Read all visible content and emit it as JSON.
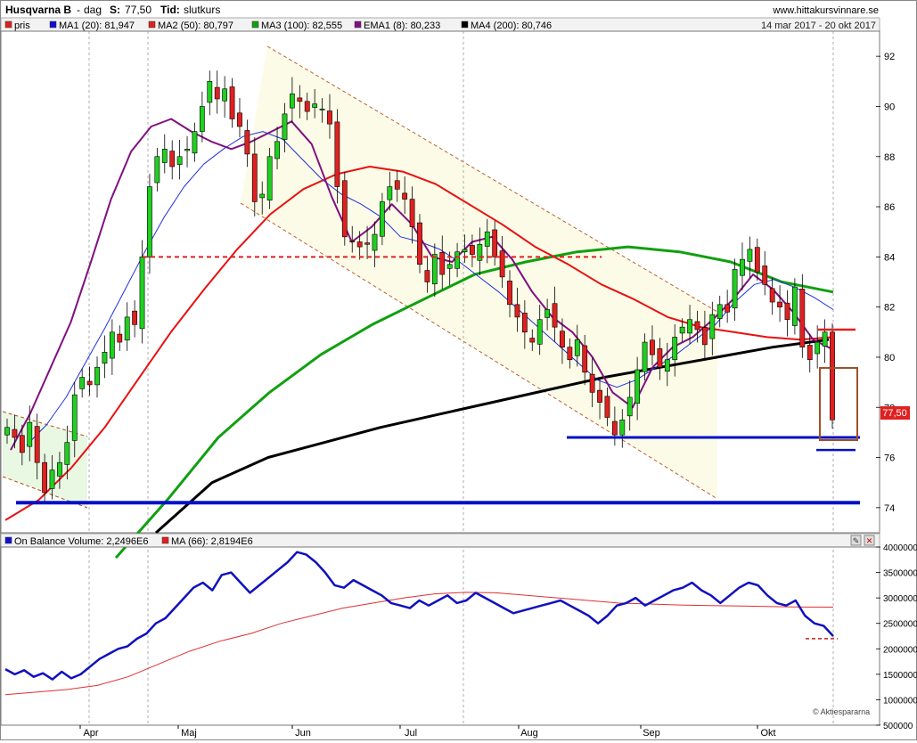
{
  "header": {
    "stock": "Husqvarna B",
    "sep": "-",
    "period": "dag",
    "close_label": "S:",
    "close_value": "77,50",
    "time_label": "Tid:",
    "time_value": "slutkurs",
    "site": "www.hittakursvinnare.se",
    "range": "14 mar 2017 - 20 okt 2017"
  },
  "legend": [
    {
      "label": "pris",
      "color": "#e02020"
    },
    {
      "label": "MA1 (20): 81,947",
      "color": "#1010d0"
    },
    {
      "label": "MA2 (50): 80,797",
      "color": "#e02020"
    },
    {
      "label": "MA3 (100): 82,555",
      "color": "#10a010"
    },
    {
      "label": "EMA1 (8): 80,233",
      "color": "#801080"
    },
    {
      "label": "MA4 (200): 80,746",
      "color": "#000000"
    }
  ],
  "price_tag": "77,50",
  "obv_legend": [
    {
      "label": "On Balance Volume: 2,2496E6",
      "color": "#1010d0"
    },
    {
      "label": "MA (66): 2,8194E6",
      "color": "#e02020"
    }
  ],
  "watermark": "© Aktiespararna",
  "colors": {
    "up": "#20d020",
    "down": "#e02020",
    "ma20": "#2030e0",
    "ma50": "#e81010",
    "ma100": "#10a010",
    "ema8": "#801080",
    "ma200": "#000000",
    "obv": "#1010c0",
    "support": "#0010c8"
  },
  "chart_data": [
    {
      "type": "candlestick",
      "x_months": [
        "Apr",
        "Maj",
        "Jun",
        "Jul",
        "Aug",
        "Sep",
        "Okt"
      ],
      "y_ticks": [
        74,
        76,
        78,
        80,
        82,
        84,
        86,
        88,
        90,
        92
      ],
      "ylim": [
        73,
        93
      ],
      "grid": false,
      "close_series": [
        77.2,
        76.8,
        76.2,
        77.4,
        75.8,
        74.6,
        75.5,
        75.8,
        76.6,
        78.5,
        79.2,
        78.9,
        79.6,
        80.2,
        81.0,
        80.6,
        81.6,
        81.3,
        84.0,
        86.8,
        88.0,
        88.3,
        87.6,
        88.0,
        88.3,
        89.0,
        90.0,
        91.0,
        90.3,
        90.7,
        89.5,
        89.2,
        88.1,
        86.2,
        86.5,
        88.0,
        88.6,
        89.7,
        90.5,
        90.2,
        89.8,
        90.1,
        89.9,
        89.3,
        86.8,
        84.8,
        84.6,
        84.4,
        84.5,
        84.9,
        86.2,
        86.8,
        86.7,
        86.3,
        85.2,
        83.7,
        83.0,
        84.1,
        83.3,
        83.7,
        84.2,
        84.3,
        84.1,
        84.5,
        85.0,
        84.0,
        83.2,
        82.1,
        81.6,
        81.0,
        80.6,
        81.5,
        81.9,
        81.2,
        80.4,
        79.9,
        80.7,
        79.4,
        78.6,
        78.2,
        77.6,
        76.9,
        77.5,
        78.4,
        79.5,
        80.6,
        80.1,
        79.6,
        79.9,
        80.8,
        81.2,
        81.5,
        81.1,
        80.5,
        81.7,
        82.1,
        81.8,
        83.5,
        83.9,
        84.3,
        83.4,
        82.9,
        82.2,
        82.0,
        81.5,
        82.8,
        80.4,
        79.9,
        80.6,
        81.0,
        77.5
      ],
      "ma20": [
        76.5,
        77.3,
        78.4,
        79.8,
        81.2,
        82.7,
        84.2,
        85.6,
        86.8,
        87.7,
        88.3,
        88.8,
        89.0,
        88.7,
        87.9,
        87.1,
        86.5,
        86.1,
        85.6,
        84.8,
        84.6,
        84.3,
        83.8,
        83.2,
        82.6,
        81.9,
        81.2,
        80.5,
        79.8,
        79.1,
        78.8,
        79.1,
        79.6,
        80.1,
        80.7,
        81.3,
        82.2,
        82.9,
        83.1,
        82.8,
        82.4,
        81.9
      ],
      "ma50": [
        73.5,
        74.3,
        75.6,
        77.2,
        79.1,
        81.0,
        82.7,
        84.3,
        85.7,
        86.7,
        87.3,
        87.6,
        87.4,
        86.9,
        86.1,
        85.3,
        84.4,
        83.7,
        82.9,
        82.3,
        81.6,
        81.2,
        81.0,
        80.8,
        80.7,
        80.8
      ],
      "ma100": [
        72.0,
        74.3,
        76.8,
        78.6,
        80.1,
        81.3,
        82.3,
        83.3,
        83.8,
        84.2,
        84.4,
        84.2,
        83.8,
        83.0,
        82.6
      ],
      "ema8": [
        76.3,
        77.8,
        79.6,
        81.4,
        83.8,
        86.3,
        88.2,
        89.2,
        89.5,
        89.0,
        88.6,
        88.3,
        88.6,
        89.0,
        89.4,
        88.5,
        86.4,
        84.6,
        85.2,
        86.1,
        85.3,
        84.0,
        83.8,
        84.6,
        84.8,
        83.9,
        82.6,
        81.6,
        81.0,
        80.0,
        78.6,
        78.0,
        79.6,
        80.4,
        80.8,
        81.5,
        82.3,
        83.3,
        82.7,
        81.8,
        80.7,
        80.3
      ],
      "ma200": [
        73.0,
        75.0,
        76.0,
        76.6,
        77.2,
        77.7,
        78.2,
        78.7,
        79.2,
        79.6,
        80.0,
        80.4,
        80.7
      ],
      "annotations": [
        {
          "type": "hline",
          "label": "resistance",
          "y": 84.0
        },
        {
          "type": "hline",
          "label": "support",
          "y": 76.8
        },
        {
          "type": "hline",
          "label": "support",
          "y": 74.2
        },
        {
          "type": "hline",
          "label": "upper",
          "y": 81.1
        },
        {
          "type": "hline",
          "label": "lower",
          "y": 76.3
        }
      ]
    },
    {
      "type": "line",
      "y_ticks": [
        "4000000",
        "3500000",
        "3000000",
        "2500000",
        "2000000",
        "1500000",
        "1000000",
        "500000"
      ],
      "ylim": [
        500000,
        4000000
      ],
      "series": [
        {
          "name": "On Balance Volume",
          "values": [
            1600000,
            1500000,
            1580000,
            1450000,
            1520000,
            1400000,
            1550000,
            1420000,
            1500000,
            1650000,
            1800000,
            1900000,
            2000000,
            2050000,
            2200000,
            2300000,
            2500000,
            2600000,
            2800000,
            3000000,
            3200000,
            3300000,
            3150000,
            3450000,
            3500000,
            3300000,
            3100000,
            3250000,
            3400000,
            3550000,
            3700000,
            3900000,
            3850000,
            3700000,
            3500000,
            3250000,
            3200000,
            3350000,
            3250000,
            3150000,
            3050000,
            2900000,
            2850000,
            2800000,
            2950000,
            2850000,
            2950000,
            3050000,
            2900000,
            2950000,
            3100000,
            3000000,
            2900000,
            2800000,
            2700000,
            2750000,
            2800000,
            2850000,
            2900000,
            2950000,
            2850000,
            2750000,
            2650000,
            2500000,
            2650000,
            2850000,
            2900000,
            3000000,
            2850000,
            2950000,
            3050000,
            3150000,
            3200000,
            3300000,
            3150000,
            3050000,
            2900000,
            3050000,
            3200000,
            3300000,
            3250000,
            3050000,
            2900000,
            2850000,
            2950000,
            2650000,
            2500000,
            2450000,
            2250000
          ]
        },
        {
          "name": "MA (66)",
          "values": [
            1100000,
            1150000,
            1200000,
            1280000,
            1450000,
            1700000,
            1950000,
            2150000,
            2300000,
            2500000,
            2650000,
            2800000,
            2900000,
            3000000,
            3080000,
            3110000,
            3100000,
            3050000,
            3000000,
            2950000,
            2900000,
            2880000,
            2860000,
            2850000,
            2840000,
            2830000,
            2820000,
            2819400
          ]
        }
      ],
      "annotations": [
        {
          "type": "hline",
          "y": 2200000
        }
      ]
    }
  ]
}
